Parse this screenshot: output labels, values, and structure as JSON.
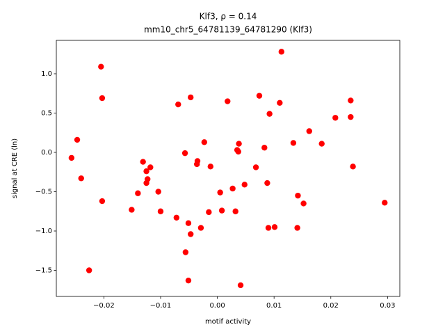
{
  "chart_data": {
    "type": "scatter",
    "title": "Klf3, ρ = 0.14",
    "subtitle": "mm10_chr5_64781139_64781290 (Klf3)",
    "x_label": "motif activity",
    "y_label": "signal at CRE (ln)",
    "color": "#ff0000",
    "xlim": [
      -0.02838,
      0.03216
    ],
    "ylim": [
      -1.832,
      1.4248
    ],
    "xticks": [
      {
        "value": -0.02,
        "label": "−0.02"
      },
      {
        "value": -0.01,
        "label": "−0.01"
      },
      {
        "value": 0,
        "label": "0.00"
      },
      0.01,
      0.02,
      0.03
    ],
    "yticks": [
      {
        "value": -1.5,
        "label": "−1.5"
      },
      {
        "value": -1,
        "label": "−1.0"
      },
      {
        "value": -0.5,
        "label": "−0.5"
      },
      {
        "value": 0,
        "label": "0.0"
      },
      0.5,
      {
        "value": 1,
        "label": "1.0"
      }
    ],
    "x": [
      -0.0257,
      -0.0247,
      -0.024,
      -0.0226,
      -0.0205,
      -0.0203,
      -0.0203,
      -0.0151,
      -0.014,
      -0.0131,
      -0.0125,
      -0.0123,
      -0.0125,
      -0.0118,
      -0.0104,
      -0.01,
      -0.0072,
      -0.0069,
      -0.0057,
      -0.0056,
      -0.0051,
      -0.0051,
      -0.0047,
      -0.0047,
      -0.0036,
      -0.0035,
      -0.0029,
      -0.0023,
      -0.0015,
      -0.0012,
      0.0005,
      0.0008,
      0.0018,
      0.0027,
      0.0032,
      0.0035,
      0.0037,
      0.0038,
      0.0041,
      0.0048,
      0.0068,
      0.0074,
      0.0083,
      0.0088,
      0.009,
      0.0092,
      0.0101,
      0.011,
      0.0113,
      0.0134,
      0.0142,
      0.0141,
      0.0152,
      0.0162,
      0.0184,
      0.0208,
      0.0235,
      0.0235,
      0.0239,
      0.0295
    ],
    "values": [
      -0.07,
      0.16,
      -0.33,
      -1.5,
      1.09,
      0.69,
      -0.62,
      -0.73,
      -0.52,
      -0.12,
      -0.24,
      -0.34,
      -0.39,
      -0.19,
      -0.5,
      -0.75,
      -0.83,
      0.61,
      -0.01,
      -1.27,
      -0.9,
      -1.63,
      0.7,
      -1.04,
      -0.15,
      -0.11,
      -0.96,
      0.13,
      -0.76,
      -0.18,
      -0.51,
      -0.74,
      0.65,
      -0.46,
      -0.75,
      0.03,
      0.01,
      0.11,
      -1.69,
      -0.41,
      -0.19,
      0.72,
      0.06,
      -0.39,
      -0.96,
      0.49,
      -0.95,
      0.63,
      1.28,
      0.12,
      -0.55,
      -0.96,
      -0.65,
      0.27,
      0.11,
      0.44,
      0.45,
      0.66,
      -0.18,
      -0.64
    ]
  }
}
